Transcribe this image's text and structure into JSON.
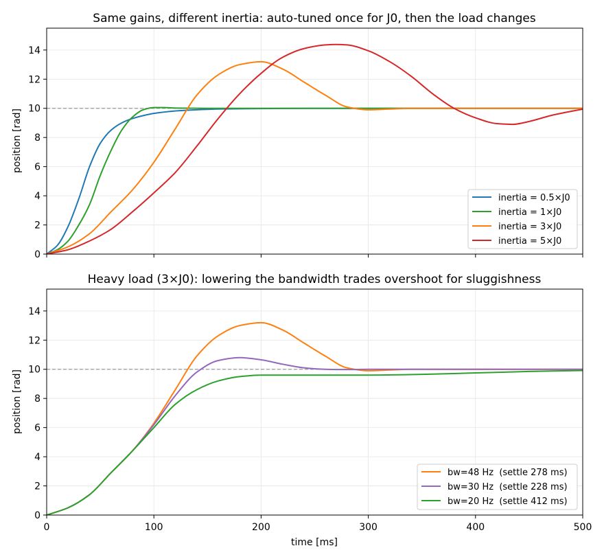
{
  "chart_data": [
    {
      "type": "line",
      "title": "Same gains, different inertia: auto-tuned once for J0, then the load changes",
      "xlabel": "",
      "ylabel": "position [rad]",
      "xlim": [
        0,
        500
      ],
      "ylim": [
        0,
        15.5
      ],
      "xticks": [
        0,
        100,
        200,
        300,
        400,
        500
      ],
      "yticks": [
        0,
        2,
        4,
        6,
        8,
        10,
        12,
        14
      ],
      "x_ticklabels_visible": false,
      "grid": true,
      "legend_position": "lower right",
      "reference_line": {
        "y": 10,
        "style": "dashed",
        "color": "#999999"
      },
      "series": [
        {
          "name": "inertia = 0.5×J0",
          "color": "#1f77b4",
          "x": [
            0,
            10,
            20,
            30,
            40,
            50,
            60,
            70,
            80,
            90,
            100,
            120,
            140,
            160,
            200,
            250,
            300,
            500
          ],
          "y": [
            0,
            0.6,
            1.9,
            3.8,
            6.0,
            7.6,
            8.5,
            9.0,
            9.3,
            9.5,
            9.65,
            9.82,
            9.9,
            9.95,
            9.98,
            10.0,
            10.0,
            10.0
          ]
        },
        {
          "name": "inertia = 1×J0",
          "color": "#2ca02c",
          "x": [
            0,
            10,
            20,
            30,
            40,
            50,
            60,
            70,
            80,
            90,
            100,
            110,
            120,
            150,
            200,
            300,
            500
          ],
          "y": [
            0,
            0.3,
            0.9,
            2.0,
            3.4,
            5.4,
            7.1,
            8.5,
            9.4,
            9.9,
            10.05,
            10.05,
            10.02,
            10.0,
            10.0,
            10.0,
            10.0
          ]
        },
        {
          "name": "inertia = 3×J0",
          "color": "#ff7f0e",
          "x": [
            0,
            20,
            40,
            60,
            80,
            100,
            120,
            140,
            160,
            180,
            200,
            220,
            240,
            260,
            280,
            300,
            320,
            340,
            400,
            500
          ],
          "y": [
            0,
            0.5,
            1.4,
            2.9,
            4.4,
            6.3,
            8.6,
            10.9,
            12.3,
            13.0,
            13.2,
            12.7,
            11.8,
            10.9,
            10.1,
            9.9,
            9.95,
            10.0,
            10.0,
            10.0
          ]
        },
        {
          "name": "inertia = 5×J0",
          "color": "#d62728",
          "x": [
            0,
            20,
            40,
            60,
            80,
            100,
            120,
            140,
            160,
            180,
            200,
            220,
            240,
            260,
            270,
            280,
            300,
            320,
            340,
            360,
            380,
            400,
            420,
            435,
            450,
            470,
            500
          ],
          "y": [
            0,
            0.3,
            0.9,
            1.7,
            2.9,
            4.2,
            5.6,
            7.4,
            9.3,
            11.0,
            12.4,
            13.5,
            14.1,
            14.35,
            14.38,
            14.35,
            13.95,
            13.2,
            12.2,
            11.0,
            10.0,
            9.35,
            8.95,
            8.9,
            9.1,
            9.5,
            9.95
          ]
        }
      ]
    },
    {
      "type": "line",
      "title": "Heavy load (3×J0): lowering the bandwidth trades overshoot for sluggishness",
      "xlabel": "time [ms]",
      "ylabel": "position [rad]",
      "xlim": [
        0,
        500
      ],
      "ylim": [
        0,
        15.5
      ],
      "xticks": [
        0,
        100,
        200,
        300,
        400,
        500
      ],
      "yticks": [
        0,
        2,
        4,
        6,
        8,
        10,
        12,
        14
      ],
      "x_ticklabels_visible": true,
      "grid": true,
      "legend_position": "lower right",
      "reference_line": {
        "y": 10,
        "style": "dashed",
        "color": "#999999"
      },
      "series": [
        {
          "name": "bw=48 Hz  (settle 278 ms)",
          "color": "#ff7f0e",
          "x": [
            0,
            20,
            40,
            60,
            80,
            100,
            120,
            140,
            160,
            180,
            200,
            220,
            240,
            260,
            280,
            300,
            320,
            340,
            400,
            500
          ],
          "y": [
            0,
            0.5,
            1.4,
            2.9,
            4.4,
            6.3,
            8.6,
            10.9,
            12.3,
            13.0,
            13.2,
            12.7,
            11.8,
            10.9,
            10.1,
            9.9,
            9.95,
            10.0,
            10.0,
            10.0
          ]
        },
        {
          "name": "bw=30 Hz  (settle 228 ms)",
          "color": "#9467bd",
          "x": [
            0,
            20,
            40,
            60,
            80,
            100,
            120,
            140,
            160,
            180,
            200,
            220,
            240,
            260,
            280,
            300,
            400,
            500
          ],
          "y": [
            0,
            0.5,
            1.4,
            2.9,
            4.4,
            6.2,
            8.2,
            9.8,
            10.6,
            10.8,
            10.65,
            10.35,
            10.1,
            10.0,
            9.98,
            10.0,
            10.0,
            10.0
          ]
        },
        {
          "name": "bw=20 Hz  (settle 412 ms)",
          "color": "#2ca02c",
          "x": [
            0,
            20,
            40,
            60,
            80,
            100,
            120,
            140,
            160,
            180,
            200,
            250,
            300,
            350,
            400,
            450,
            500
          ],
          "y": [
            0,
            0.5,
            1.4,
            2.9,
            4.4,
            6.0,
            7.6,
            8.6,
            9.2,
            9.5,
            9.6,
            9.6,
            9.6,
            9.65,
            9.75,
            9.85,
            9.92
          ]
        }
      ]
    }
  ]
}
